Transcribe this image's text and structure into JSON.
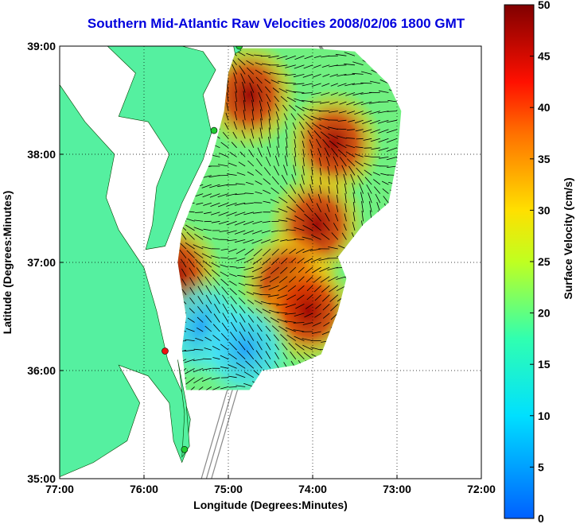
{
  "title": "Southern Mid-Atlantic Raw Velocities 2008/02/06 1800 GMT",
  "x_axis": {
    "label": "Longitude (Degrees:Minutes)",
    "ticks": [
      {
        "value": -77,
        "label": "77:00"
      },
      {
        "value": -76,
        "label": "76:00"
      },
      {
        "value": -75,
        "label": "75:00"
      },
      {
        "value": -74,
        "label": "74:00"
      },
      {
        "value": -73,
        "label": "73:00"
      },
      {
        "value": -72,
        "label": "72:00"
      }
    ],
    "range": [
      -77,
      -72
    ]
  },
  "y_axis": {
    "label": "Latitude (Degrees:Minutes)",
    "ticks": [
      {
        "value": 35,
        "label": "35:00"
      },
      {
        "value": 36,
        "label": "36:00"
      },
      {
        "value": 37,
        "label": "37:00"
      },
      {
        "value": 38,
        "label": "38:00"
      },
      {
        "value": 39,
        "label": "39:00"
      }
    ],
    "range": [
      35,
      39
    ]
  },
  "colorbar": {
    "label": "Surface Velocity (cm/s)",
    "min": 0,
    "max": 50,
    "ticks": [
      {
        "value": 0,
        "label": "0"
      },
      {
        "value": 5,
        "label": "5"
      },
      {
        "value": 10,
        "label": "10"
      },
      {
        "value": 15,
        "label": "15"
      },
      {
        "value": 20,
        "label": "20"
      },
      {
        "value": 25,
        "label": "25"
      },
      {
        "value": 30,
        "label": "30"
      },
      {
        "value": 35,
        "label": "35"
      },
      {
        "value": 40,
        "label": "40"
      },
      {
        "value": 45,
        "label": "45"
      },
      {
        "value": 50,
        "label": "50"
      }
    ]
  },
  "colors": {
    "land": "#55f0a0",
    "water_text": "#0000dd",
    "station_green": "#22cc33",
    "station_red": "#ee1111",
    "bathymetry": "#888888"
  },
  "stations": [
    {
      "lon": -74.87,
      "lat": 39.0,
      "color": "green"
    },
    {
      "lon": -75.17,
      "lat": 38.22,
      "color": "green"
    },
    {
      "lon": -75.75,
      "lat": 36.18,
      "color": "red"
    },
    {
      "lon": -75.52,
      "lat": 35.27,
      "color": "green"
    }
  ],
  "chart_data": {
    "type": "heatmap",
    "title": "Southern Mid-Atlantic Raw Velocities 2008/02/06 1800 GMT",
    "xlabel": "Longitude (Degrees:Minutes)",
    "ylabel": "Latitude (Degrees:Minutes)",
    "xlim": [
      -77,
      -72
    ],
    "ylim": [
      35,
      39
    ],
    "grid": true,
    "colorbar_label": "Surface Velocity (cm/s)",
    "colorbar_range": [
      0,
      50
    ],
    "hotspots": [
      {
        "lon": -74.75,
        "lat": 38.55,
        "speed": 50
      },
      {
        "lon": -73.75,
        "lat": 38.1,
        "speed": 40
      },
      {
        "lon": -73.95,
        "lat": 37.35,
        "speed": 42
      },
      {
        "lon": -74.3,
        "lat": 36.8,
        "speed": 48
      },
      {
        "lon": -74.05,
        "lat": 36.55,
        "speed": 40
      },
      {
        "lon": -75.65,
        "lat": 36.9,
        "speed": 32
      },
      {
        "lon": -75.3,
        "lat": 36.4,
        "speed": 8
      },
      {
        "lon": -74.8,
        "lat": 36.2,
        "speed": 10
      }
    ]
  }
}
